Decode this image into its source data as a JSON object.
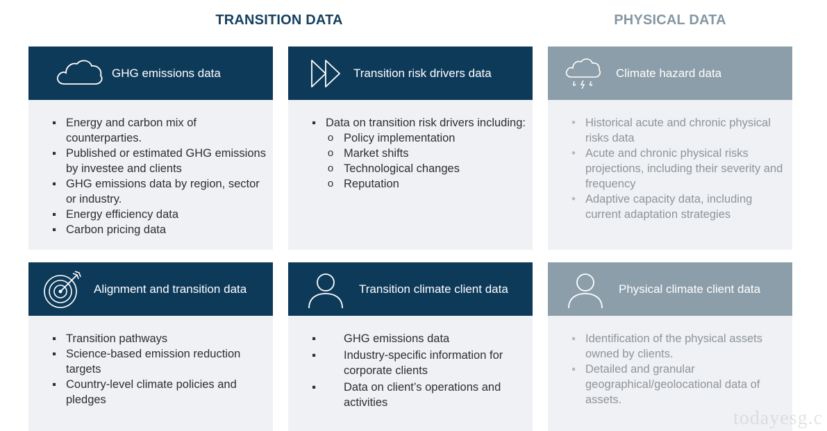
{
  "headings": {
    "transition": "TRANSITION DATA",
    "physical": "PHYSICAL DATA"
  },
  "cards": {
    "ghg": {
      "title": "GHG emissions data",
      "icon": "cloud-icon",
      "items": [
        "Energy and carbon mix of counterparties.",
        "Published or estimated GHG emissions by investee and clients",
        "GHG emissions data by region, sector or industry.",
        "Energy efficiency data",
        "Carbon pricing data"
      ]
    },
    "drivers": {
      "title": "Transition risk drivers data",
      "icon": "fast-forward-icon",
      "intro": "Data on transition risk drivers including:",
      "subitems": [
        "Policy implementation",
        "Market shifts",
        "Technological changes",
        "Reputation"
      ]
    },
    "hazard": {
      "title": "Climate hazard data",
      "icon": "rain-cloud-icon",
      "items": [
        "Historical acute and chronic physical risks data",
        "Acute and chronic physical risks projections, including their severity and frequency",
        "Adaptive capacity data, including current adaptation strategies"
      ]
    },
    "alignment": {
      "title": "Alignment and transition data",
      "icon": "target-icon",
      "items": [
        "Transition pathways",
        "Science-based emission reduction targets",
        "Country-level climate policies and pledges"
      ]
    },
    "transition_client": {
      "title": "Transition climate client data",
      "icon": "person-icon",
      "items": [
        "GHG emissions data",
        "Industry-specific information for corporate clients",
        "Data on client’s operations and activities"
      ]
    },
    "physical_client": {
      "title": "Physical climate client data",
      "icon": "person-icon",
      "items": [
        "Identification of the physical assets owned by clients.",
        "Detailed and granular geographical/geolocational data of assets."
      ]
    }
  },
  "bullets": {
    "square": "▪",
    "dot": "•",
    "circle": "o"
  },
  "watermark": "todayesg.c",
  "colors": {
    "transition_header": "#0e3a5a",
    "physical_header": "#8c9ea9",
    "card_body": "#eff1f4",
    "transition_heading": "#16405f",
    "physical_heading": "#8497a3"
  }
}
